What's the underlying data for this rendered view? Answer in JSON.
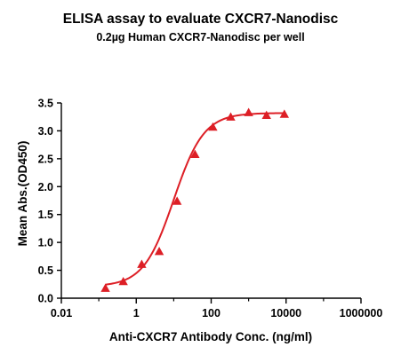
{
  "chart_data": {
    "type": "scatter",
    "title": "ELISA assay to evaluate CXCR7-Nanodisc",
    "subtitle": "0.2µg Human CXCR7-Nanodisc per well",
    "xlabel": "Anti-CXCR7 Antibody Conc. (ng/ml)",
    "ylabel": "Mean Abs.(OD450)",
    "x_scale": "log",
    "xlim": [
      0.01,
      1000000
    ],
    "ylim": [
      0.0,
      3.5
    ],
    "x_ticks": [
      0.01,
      1,
      100,
      10000,
      1000000
    ],
    "x_tick_labels": [
      "0.01",
      "1",
      "100",
      "10000",
      "1000000"
    ],
    "y_ticks": [
      0.0,
      0.5,
      1.0,
      1.5,
      2.0,
      2.5,
      3.0,
      3.5
    ],
    "y_tick_labels": [
      "0.0",
      "0.5",
      "1.0",
      "1.5",
      "2.0",
      "2.5",
      "3.0",
      "3.5"
    ],
    "grid": false,
    "series": [
      {
        "marker": "triangle",
        "color": "#dd1f26",
        "x": [
          0.15,
          0.45,
          1.4,
          4.1,
          12.3,
          37,
          111,
          333,
          1000,
          3000,
          9000
        ],
        "y": [
          0.18,
          0.3,
          0.61,
          0.84,
          1.74,
          2.58,
          3.07,
          3.25,
          3.33,
          3.28,
          3.3
        ]
      },
      {
        "type": "line",
        "color": "#dd1f26",
        "fit": {
          "model": "4PL",
          "bottom": 0.21,
          "top": 3.32,
          "ec50": 10.0,
          "hill": 1.08
        }
      }
    ]
  }
}
